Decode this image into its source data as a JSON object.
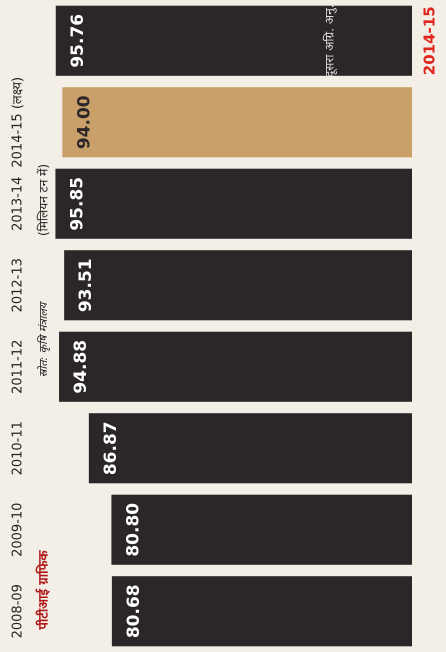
{
  "chart_data": {
    "type": "bar",
    "unit": "(मिलियन टन में)",
    "source": "स्रोत: कृषि मंत्रालय",
    "credit": "पीटीआई ग्राफिक",
    "note": "दूसरा अग्रि. अनु.",
    "categories": [
      "2008-09",
      "2009-10",
      "2010-11",
      "2011-12",
      "2012-13",
      "2013-14",
      "2014-15 (लक्ष्य)",
      "2014-15"
    ],
    "values": [
      80.68,
      80.8,
      86.87,
      94.88,
      93.51,
      95.85,
      94.0,
      95.76
    ],
    "value_labels": [
      "80.68",
      "80.80",
      "86.87",
      "94.88",
      "93.51",
      "95.85",
      "94.00",
      "95.76"
    ],
    "colors": [
      "#2b2627",
      "#2b2627",
      "#2b2627",
      "#2b2627",
      "#2b2627",
      "#2b2627",
      "#c9a06a",
      "#2b2627"
    ],
    "last_category_color": "#e0261c",
    "ylim": [
      0,
      100
    ]
  }
}
